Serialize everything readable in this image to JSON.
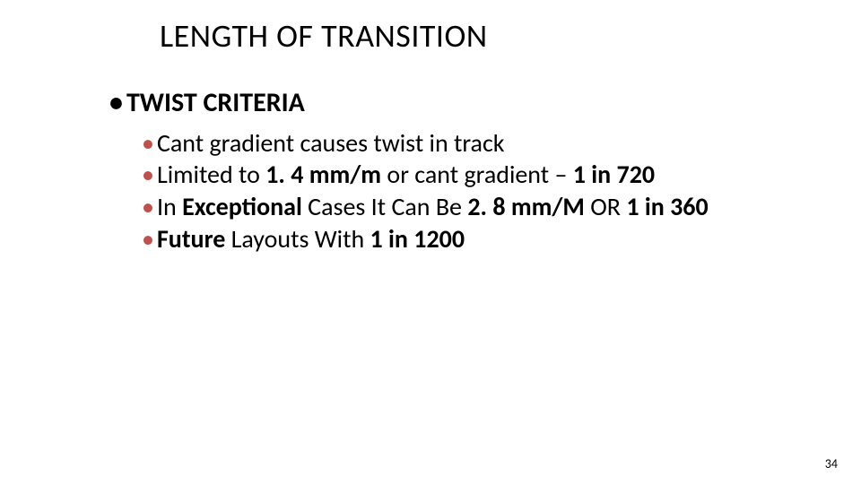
{
  "title": "LENGTH OF TRANSITION",
  "heading": {
    "bullet": "•",
    "text": "TWIST CRITERIA"
  },
  "items": [
    {
      "bullet": "•",
      "pre": "",
      "bold1": "",
      "mid1": "Cant gradient causes twist in track",
      "bold2": "",
      "mid2": "",
      "bold3": "",
      "tail": ""
    },
    {
      "bullet": "•",
      "pre": "Limited to ",
      "bold1": "1. 4 mm/m",
      "mid1": " or cant gradient – ",
      "bold2": "1 in 720",
      "mid2": "",
      "bold3": "",
      "tail": ""
    },
    {
      "bullet": "•",
      "pre": "In ",
      "bold1": "Exceptional",
      "mid1": " Cases It Can Be ",
      "bold2": "2. 8 mm/M",
      "mid2": " OR ",
      "bold3": "1 in 360",
      "tail": ""
    },
    {
      "bullet": "•",
      "pre": "",
      "bold1": "Future",
      "mid1": " Layouts With ",
      "bold2": "1 in 1200",
      "mid2": "",
      "bold3": "",
      "tail": ""
    }
  ],
  "colors": {
    "bullet_accent": "#c0504d",
    "text": "#000000",
    "background": "#ffffff"
  },
  "typography": {
    "title_fontsize": 36,
    "level1_fontsize": 30,
    "level2_fontsize": 28,
    "font_family": "Calibri"
  },
  "page_number": "34"
}
